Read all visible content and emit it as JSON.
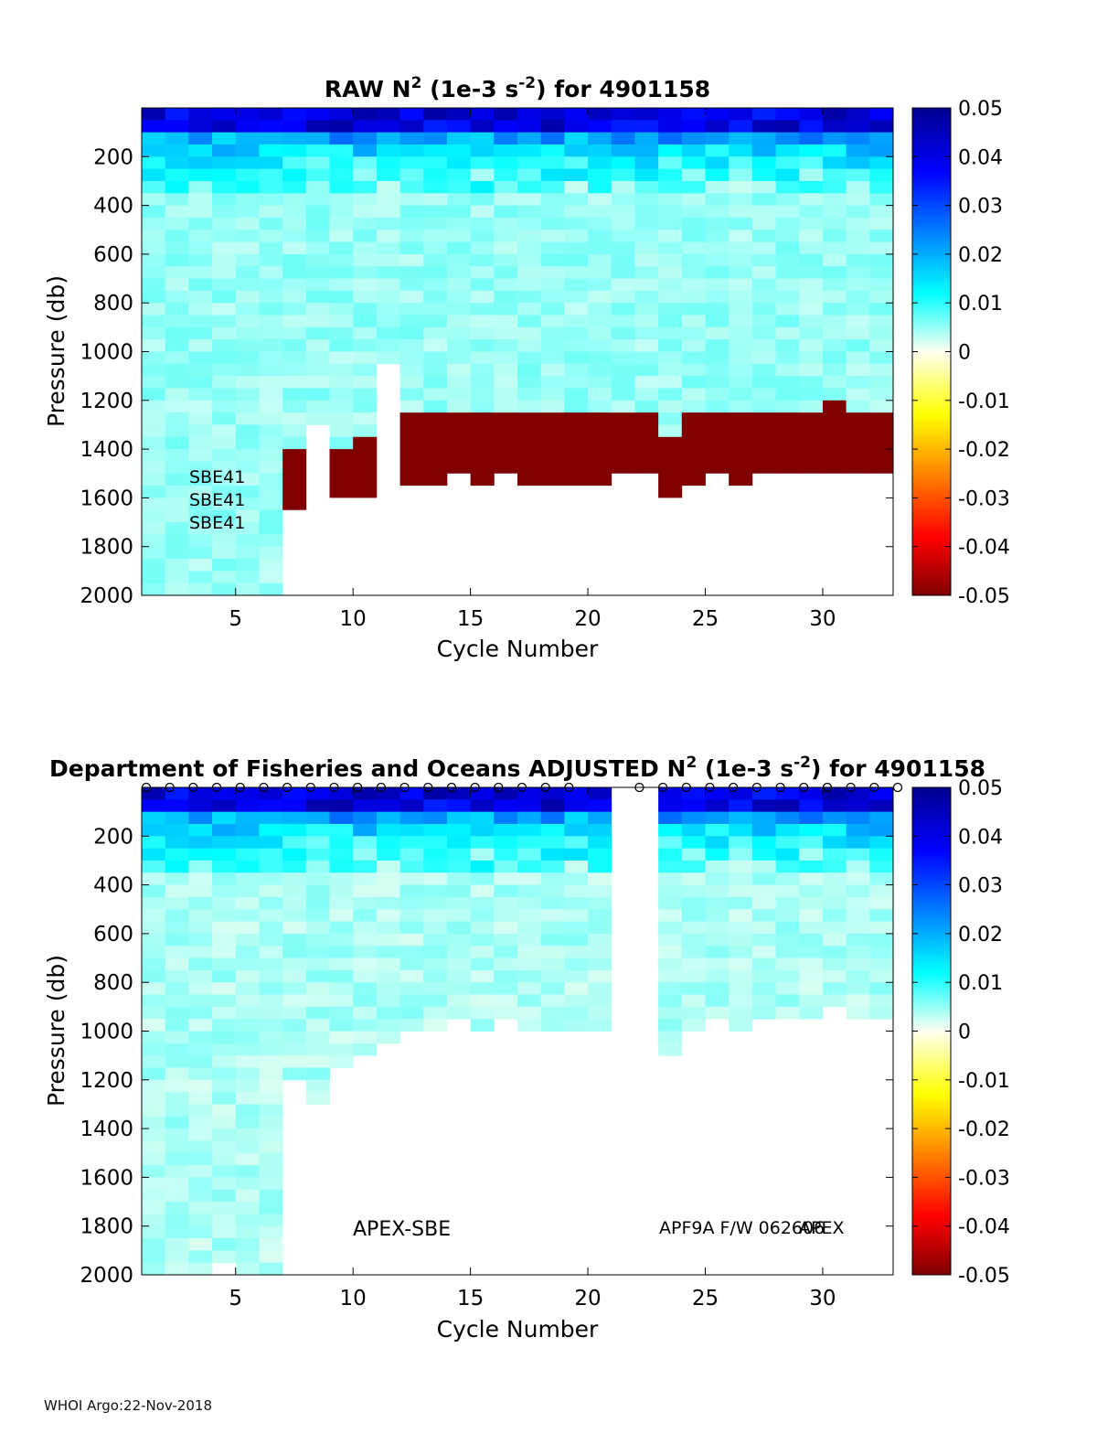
{
  "footer": "WHOI Argo:22-Nov-2018",
  "colorbar": {
    "ticks": [
      "0.05",
      "0.04",
      "0.03",
      "0.02",
      "0.01",
      "0",
      "-0.01",
      "-0.02",
      "-0.03",
      "-0.04",
      "-0.05"
    ],
    "range": [
      -0.05,
      0.05
    ]
  },
  "chart_data": [
    {
      "type": "heatmap",
      "title": "RAW N² (1e-3 s⁻²) for 4901158",
      "title_parts": {
        "pre": "RAW N",
        "sup1": "2",
        "mid": " (1e-3 s",
        "sup2": "-2",
        "post": ") for 4901158"
      },
      "xlabel": "Cycle Number",
      "ylabel": "Pressure (db)",
      "x_ticks": [
        "5",
        "10",
        "15",
        "20",
        "25",
        "30"
      ],
      "y_ticks": [
        "200",
        "400",
        "600",
        "800",
        "1000",
        "1200",
        "1400",
        "1600",
        "1800",
        "2000"
      ],
      "xlim": [
        1,
        33
      ],
      "ylim": [
        0,
        2000
      ],
      "color_range": [
        -0.05,
        0.05
      ],
      "annotations": [
        "SBE41",
        "SBE41",
        "SBE41"
      ],
      "cycles": [
        1,
        2,
        3,
        4,
        5,
        6,
        7,
        8,
        9,
        10,
        11,
        12,
        13,
        14,
        15,
        16,
        17,
        18,
        19,
        20,
        21,
        22,
        23,
        24,
        25,
        26,
        27,
        28,
        29,
        30,
        31,
        32
      ],
      "valid_bottom_db": [
        2000,
        2000,
        2000,
        2000,
        2000,
        2000,
        1650,
        1300,
        1600,
        1600,
        1050,
        1550,
        1550,
        1500,
        1550,
        1500,
        1550,
        1550,
        1550,
        1550,
        1500,
        1500,
        1600,
        1550,
        1500,
        1550,
        1500,
        1500,
        1500,
        1500,
        1500,
        1500
      ],
      "negative_top_db": [
        null,
        null,
        null,
        null,
        null,
        null,
        1400,
        null,
        1400,
        1350,
        null,
        1250,
        1250,
        1250,
        1250,
        1250,
        1250,
        1250,
        1250,
        1250,
        1250,
        1250,
        1350,
        1250,
        1250,
        1250,
        1250,
        1250,
        1250,
        1200,
        1250,
        1250
      ],
      "negative_value": -0.05,
      "surface_value": 0.045,
      "deep_value": 0.004
    },
    {
      "type": "heatmap",
      "title": "Department of Fisheries and Oceans  ADJUSTED N² (1e-3 s⁻²) for 4901158",
      "title_parts": {
        "pre": "Department of Fisheries and Oceans  ADJUSTED N",
        "sup1": "2",
        "mid": " (1e-3 s",
        "sup2": "-2",
        "post": ") for 4901158"
      },
      "xlabel": "Cycle Number",
      "ylabel": "Pressure (db)",
      "x_ticks": [
        "5",
        "10",
        "15",
        "20",
        "25",
        "30"
      ],
      "y_ticks": [
        "200",
        "400",
        "600",
        "800",
        "1000",
        "1200",
        "1400",
        "1600",
        "1800",
        "2000"
      ],
      "xlim": [
        1,
        33
      ],
      "ylim": [
        0,
        2000
      ],
      "color_range": [
        -0.05,
        0.05
      ],
      "annotations": [
        "APEX-SBE",
        "APF9A F/W 062606",
        "APEX"
      ],
      "cycles": [
        1,
        2,
        3,
        4,
        5,
        6,
        7,
        8,
        9,
        10,
        11,
        12,
        13,
        14,
        15,
        16,
        17,
        18,
        19,
        20,
        21,
        22,
        23,
        24,
        25,
        26,
        27,
        28,
        29,
        30,
        31,
        32
      ],
      "valid_bottom_db": [
        2000,
        2000,
        2000,
        1950,
        2000,
        2000,
        1200,
        1300,
        1150,
        1100,
        1050,
        1000,
        1000,
        950,
        1000,
        950,
        1000,
        1000,
        1000,
        1000,
        null,
        null,
        1100,
        1000,
        950,
        1000,
        950,
        950,
        950,
        900,
        950,
        950
      ],
      "marker_cycles": [
        1,
        2,
        3,
        4,
        5,
        6,
        7,
        8,
        9,
        10,
        11,
        12,
        13,
        14,
        15,
        16,
        17,
        18,
        19,
        22,
        23,
        24,
        25,
        26,
        27,
        28,
        29,
        30,
        31,
        32,
        33
      ],
      "surface_value": 0.045,
      "deep_value": 0.003
    }
  ]
}
